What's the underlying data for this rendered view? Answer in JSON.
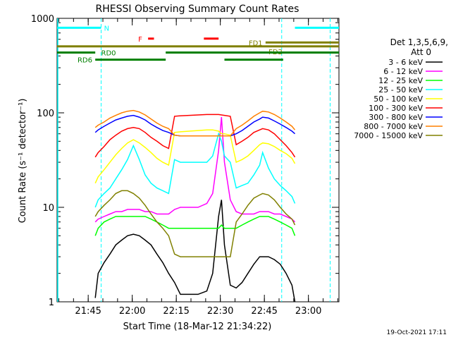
{
  "chart_data": {
    "type": "line",
    "title": "RHESSI Observing Summary Count Rates",
    "xlabel": "Start Time (18-Mar-12 21:34:22)",
    "ylabel": "Count Rate (s⁻¹ detector⁻¹)",
    "y_scale": "log",
    "ylim": [
      1,
      1000
    ],
    "xlim_minutes": [
      0,
      96
    ],
    "y_ticks": [
      {
        "value": 1,
        "label": "1"
      },
      {
        "value": 10,
        "label": "10"
      },
      {
        "value": 100,
        "label": "100"
      },
      {
        "value": 1000,
        "label": "1000"
      }
    ],
    "x_ticks": [
      {
        "value": 10.6,
        "label": "21:45"
      },
      {
        "value": 25.6,
        "label": "22:00"
      },
      {
        "value": 40.6,
        "label": "22:15"
      },
      {
        "value": 55.6,
        "label": "22:30"
      },
      {
        "value": 70.6,
        "label": "22:45"
      },
      {
        "value": 85.6,
        "label": "23:00"
      }
    ],
    "legend_header": [
      "Det 1,3,5,6,9,",
      "Att 0"
    ],
    "legend_position": "right",
    "series": [
      {
        "name": "3 - 6 keV",
        "color": "#000000",
        "x": [
          13,
          14,
          16,
          18,
          20,
          22,
          24,
          26,
          28,
          30,
          32,
          34,
          36,
          38,
          40,
          42,
          45,
          48,
          51,
          53,
          55,
          56,
          57,
          59,
          61,
          63,
          65,
          67,
          69,
          70,
          72,
          74,
          76,
          78,
          80,
          81
        ],
        "y": [
          1.1,
          2.0,
          2.6,
          3.2,
          4.0,
          4.5,
          5.0,
          5.2,
          5.0,
          4.5,
          4.0,
          3.2,
          2.6,
          2.0,
          1.6,
          1.2,
          1.2,
          1.2,
          1.3,
          2.0,
          8.0,
          12.0,
          4.0,
          1.5,
          1.4,
          1.6,
          2.0,
          2.5,
          3.0,
          3.0,
          3.0,
          2.8,
          2.5,
          2.0,
          1.5,
          1.0
        ]
      },
      {
        "name": "6 - 12 keV",
        "color": "#ff00ff",
        "x": [
          13,
          14,
          16,
          18,
          20,
          22,
          24,
          26,
          28,
          30,
          32,
          34,
          36,
          38,
          40,
          42,
          45,
          48,
          51,
          53,
          55,
          56,
          57,
          59,
          61,
          63,
          65,
          67,
          69,
          70,
          72,
          74,
          76,
          78,
          80,
          81
        ],
        "y": [
          7,
          7.5,
          8,
          8.5,
          9,
          9,
          9.5,
          9.5,
          9.5,
          9,
          9,
          8.5,
          8.5,
          8.5,
          9.5,
          10,
          10,
          10,
          11,
          14,
          40,
          90,
          30,
          12,
          9,
          8.5,
          8.5,
          8.5,
          9,
          9,
          9,
          8.5,
          8.5,
          8,
          7.5,
          7
        ]
      },
      {
        "name": "12 - 25 keV",
        "color": "#00ff00",
        "x": [
          13,
          14,
          16,
          18,
          20,
          22,
          24,
          26,
          28,
          30,
          32,
          34,
          36,
          38,
          40,
          42,
          45,
          48,
          51,
          53,
          55,
          56,
          57,
          59,
          61,
          63,
          65,
          67,
          69,
          70,
          72,
          74,
          76,
          78,
          80,
          81
        ],
        "y": [
          5,
          6,
          7,
          7.5,
          8,
          8,
          8,
          8,
          8,
          8,
          7.5,
          7,
          6.5,
          6,
          6,
          6,
          6,
          6,
          6,
          6,
          6,
          6.5,
          6,
          6,
          6,
          6.5,
          7,
          7.5,
          8,
          8,
          8,
          7.5,
          7,
          6.5,
          6,
          5
        ]
      },
      {
        "name": "25 - 50 keV",
        "color": "#00ffff",
        "x": [
          13,
          14,
          16,
          18,
          20,
          22,
          24,
          26,
          28,
          30,
          32,
          34,
          36,
          38,
          40,
          42,
          45,
          48,
          51,
          53,
          55,
          56,
          57,
          59,
          61,
          63,
          65,
          67,
          69,
          70,
          72,
          74,
          76,
          78,
          80,
          81
        ],
        "y": [
          10,
          12,
          14,
          16,
          20,
          25,
          32,
          45,
          32,
          22,
          18,
          16,
          15,
          14,
          32,
          30,
          30,
          30,
          30,
          35,
          60,
          50,
          35,
          30,
          16,
          17,
          18,
          22,
          28,
          38,
          26,
          20,
          17,
          15,
          13,
          11
        ]
      },
      {
        "name": "50 - 100 keV",
        "color": "#ffff00",
        "x": [
          13,
          14,
          16,
          18,
          20,
          22,
          24,
          26,
          28,
          30,
          32,
          34,
          36,
          38,
          40,
          42,
          45,
          48,
          51,
          53,
          55,
          56,
          57,
          59,
          61,
          63,
          65,
          67,
          69,
          70,
          72,
          74,
          76,
          78,
          80,
          81
        ],
        "y": [
          18,
          21,
          25,
          30,
          36,
          42,
          48,
          52,
          48,
          43,
          38,
          33,
          30,
          28,
          62,
          63,
          64,
          65,
          66,
          66,
          64,
          60,
          60,
          58,
          30,
          32,
          35,
          40,
          46,
          48,
          47,
          44,
          40,
          37,
          33,
          29
        ]
      },
      {
        "name": "100 - 300 keV",
        "color": "#ff0000",
        "x": [
          13,
          14,
          16,
          18,
          20,
          22,
          24,
          26,
          28,
          30,
          32,
          34,
          36,
          38,
          40,
          42,
          45,
          48,
          51,
          53,
          55,
          56,
          57,
          59,
          61,
          63,
          65,
          67,
          69,
          70,
          72,
          74,
          76,
          78,
          80,
          81
        ],
        "y": [
          34,
          38,
          44,
          52,
          58,
          64,
          68,
          70,
          68,
          62,
          55,
          50,
          45,
          42,
          92,
          93,
          94,
          95,
          96,
          96,
          96,
          95,
          94,
          92,
          46,
          50,
          55,
          62,
          66,
          68,
          66,
          60,
          52,
          45,
          38,
          34
        ]
      },
      {
        "name": "300 - 800 keV",
        "color": "#0000ff",
        "x": [
          13,
          14,
          16,
          18,
          20,
          22,
          24,
          26,
          28,
          30,
          32,
          34,
          36,
          38,
          40,
          42,
          45,
          48,
          51,
          53,
          55,
          56,
          57,
          59,
          61,
          63,
          65,
          67,
          69,
          70,
          72,
          74,
          76,
          78,
          80,
          81
        ],
        "y": [
          62,
          66,
          72,
          78,
          84,
          88,
          92,
          94,
          90,
          84,
          76,
          70,
          65,
          62,
          58,
          57,
          57,
          57,
          57,
          57,
          57,
          57,
          57,
          57,
          60,
          65,
          72,
          80,
          86,
          90,
          88,
          82,
          76,
          70,
          64,
          60
        ]
      },
      {
        "name": "800 - 7000 keV",
        "color": "#ff8000",
        "x": [
          13,
          14,
          16,
          18,
          20,
          22,
          24,
          26,
          28,
          30,
          32,
          34,
          36,
          38,
          40,
          42,
          45,
          48,
          51,
          53,
          55,
          56,
          57,
          59,
          61,
          63,
          65,
          67,
          69,
          70,
          72,
          74,
          76,
          78,
          80,
          81
        ],
        "y": [
          70,
          74,
          80,
          88,
          94,
          100,
          104,
          106,
          102,
          95,
          86,
          78,
          72,
          68,
          58,
          57,
          57,
          57,
          57,
          57,
          57,
          57,
          57,
          57,
          68,
          74,
          82,
          92,
          100,
          104,
          102,
          96,
          88,
          80,
          72,
          66
        ]
      },
      {
        "name": "7000 - 15000 keV",
        "color": "#808000",
        "x": [
          13,
          14,
          16,
          18,
          20,
          22,
          24,
          26,
          28,
          30,
          32,
          34,
          36,
          38,
          40,
          42,
          45,
          48,
          51,
          53,
          55,
          56,
          57,
          59,
          61,
          63,
          65,
          67,
          69,
          70,
          72,
          74,
          76,
          78,
          80,
          81
        ],
        "y": [
          8,
          9,
          10.5,
          12,
          14,
          15,
          15,
          14,
          12.5,
          10.5,
          8.5,
          7,
          6,
          5,
          3.2,
          3.0,
          3.0,
          3.0,
          3.0,
          3.0,
          3.0,
          3.0,
          3.0,
          3.0,
          7,
          8.5,
          10.5,
          12.5,
          13.5,
          14,
          13.5,
          12,
          10,
          8.5,
          7.5,
          6.5
        ]
      }
    ],
    "flag_bars": [
      {
        "label": "N",
        "color": "#00ffff",
        "level": 795,
        "segments": [
          [
            0,
            15
          ],
          [
            81,
            96
          ]
        ]
      },
      {
        "label": "F",
        "color": "#ff0000",
        "level": 610,
        "segments": [
          [
            31,
            33
          ],
          [
            50,
            55
          ]
        ]
      },
      {
        "label": "FD1",
        "color": "#808000",
        "level": 555,
        "segments": [
          [
            71,
            96
          ]
        ]
      },
      {
        "label": "FD2",
        "color": "#808000",
        "level": 505,
        "segments": [
          [
            0,
            96
          ]
        ]
      },
      {
        "label": "RD0",
        "color": "#008000",
        "level": 435,
        "segments": [
          [
            0,
            13
          ],
          [
            37,
            96
          ]
        ]
      },
      {
        "label": "RD6",
        "color": "#008000",
        "level": 365,
        "segments": [
          [
            13,
            37
          ],
          [
            57,
            77
          ]
        ]
      }
    ],
    "vertical_markers": [
      {
        "x": 15,
        "color": "#00ffff",
        "style": "dashed"
      },
      {
        "x": 76.5,
        "color": "#00ffff",
        "style": "dashed"
      },
      {
        "x": 93,
        "color": "#00ffff",
        "style": "dashed"
      }
    ],
    "timestamp": "19-Oct-2021 17:11"
  }
}
